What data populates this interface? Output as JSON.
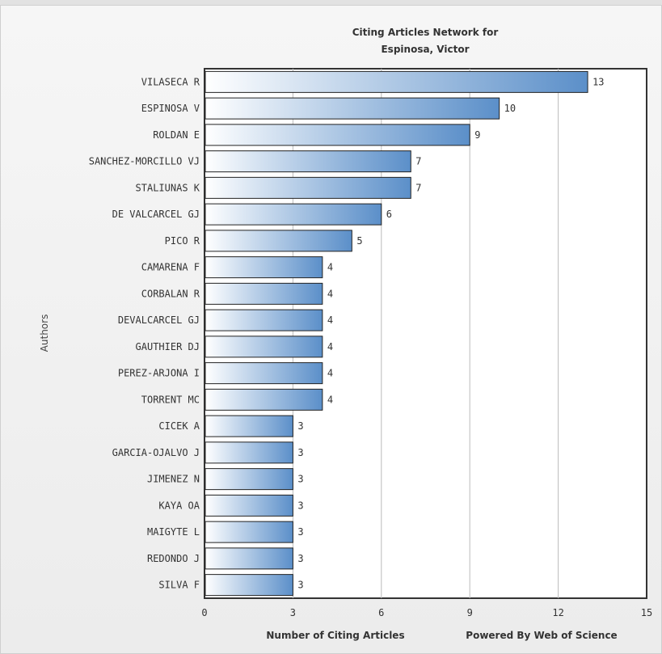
{
  "chart_data": {
    "type": "bar",
    "orientation": "horizontal",
    "title": [
      "Citing Articles Network for",
      "Espinosa, Victor"
    ],
    "xlabel": "Number of Citing Articles",
    "ylabel": "Authors",
    "credit": "Powered By Web of Science",
    "xlim": [
      0,
      15
    ],
    "xticks": [
      0,
      3,
      6,
      9,
      12,
      15
    ],
    "grid": true,
    "categories": [
      "VILASECA R",
      "ESPINOSA V",
      "ROLDAN E",
      "SANCHEZ-MORCILLO VJ",
      "STALIUNAS K",
      "DE VALCARCEL GJ",
      "PICO R",
      "CAMARENA F",
      "CORBALAN R",
      "DEVALCARCEL GJ",
      "GAUTHIER DJ",
      "PEREZ-ARJONA I",
      "TORRENT MC",
      "CICEK A",
      "GARCIA-OJALVO J",
      "JIMENEZ N",
      "KAYA OA",
      "MAIGYTE L",
      "REDONDO J",
      "SILVA F"
    ],
    "values": [
      13,
      10,
      9,
      7,
      7,
      6,
      5,
      4,
      4,
      4,
      4,
      4,
      4,
      3,
      3,
      3,
      3,
      3,
      3,
      3
    ],
    "bar_gradient": [
      "#ffffff",
      "#5b8fc9"
    ]
  }
}
